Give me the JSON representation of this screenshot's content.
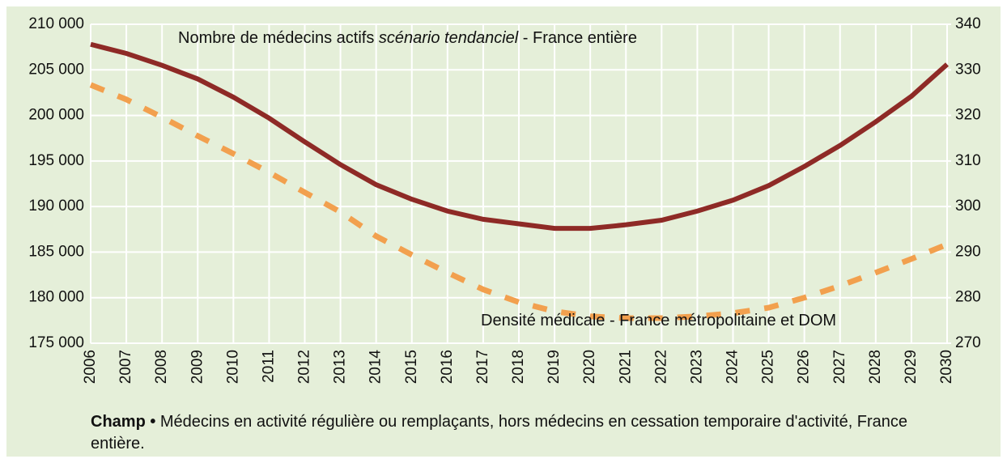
{
  "chart_data": {
    "type": "line",
    "categories": [
      "2006",
      "2007",
      "2008",
      "2009",
      "2010",
      "2011",
      "2012",
      "2013",
      "2014",
      "2015",
      "2016",
      "2017",
      "2018",
      "2019",
      "2020",
      "2021",
      "2022",
      "2023",
      "2024",
      "2025",
      "2026",
      "2027",
      "2028",
      "2029",
      "2030"
    ],
    "series": [
      {
        "color": "#8e2a26",
        "dash": false,
        "axis": "y",
        "values": [
          207800,
          206800,
          205500,
          204000,
          202000,
          199700,
          197100,
          194600,
          192400,
          190800,
          189500,
          188600,
          188100,
          187600,
          187600,
          188000,
          188500,
          189500,
          190700,
          192300,
          194400,
          196700,
          199300,
          202100,
          205600
        ]
      },
      {
        "color": "#f2a04e",
        "dash": true,
        "axis": "y2",
        "values": [
          326.7,
          323.5,
          319.6,
          315.5,
          311.6,
          307.5,
          303.1,
          298.8,
          293.5,
          289.4,
          285.5,
          281.8,
          279.0,
          277.0,
          275.9,
          275.5,
          275.5,
          275.9,
          276.6,
          277.8,
          280.0,
          282.6,
          285.5,
          288.5,
          291.7
        ]
      }
    ],
    "annotations": [
      {
        "parts": [
          "Nombre de médecins actifs ",
          "scénario tendanciel",
          " - France entière"
        ]
      },
      {
        "parts": [
          "Densité médicale - France métropolitaine et DOM"
        ]
      }
    ],
    "note": {
      "bold": "Champ •",
      "text": " Médecins en activité régulière ou remplaçants, hors médecins en cessation temporaire d'activité, France entière."
    },
    "ylim": [
      175000,
      210000
    ],
    "yticks": [
      {
        "value": 175000,
        "label": "175 000"
      },
      {
        "value": 180000,
        "label": "180 000"
      },
      {
        "value": 185000,
        "label": "185 000"
      },
      {
        "value": 190000,
        "label": "190 000"
      },
      {
        "value": 195000,
        "label": "195 000"
      },
      {
        "value": 200000,
        "label": "200 000"
      },
      {
        "value": 205000,
        "label": "205 000"
      },
      {
        "value": 210000,
        "label": "210 000"
      }
    ],
    "y2lim": [
      270,
      340
    ],
    "y2ticks": [
      270,
      280,
      290,
      300,
      310,
      320,
      330,
      340
    ],
    "grid": true
  }
}
